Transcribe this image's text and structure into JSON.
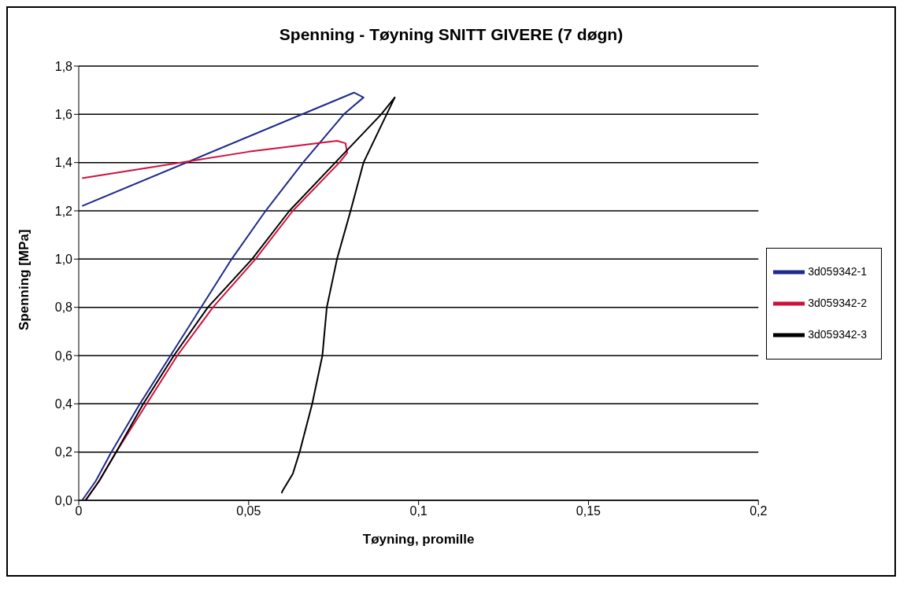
{
  "chart_data": {
    "type": "line",
    "title": "Spenning - Tøyning SNITT GIVERE (7 døgn)",
    "xlabel": "Tøyning, promille",
    "ylabel": "Spenning [MPa]",
    "xlim": [
      0,
      0.2
    ],
    "xticks": [
      0,
      {
        "value": 0.05,
        "label": "0,05"
      },
      {
        "value": 0.1,
        "label": "0,1"
      },
      {
        "value": 0.15,
        "label": "0,15"
      },
      {
        "value": 0.2,
        "label": "0,2"
      }
    ],
    "ylim": [
      0,
      1.8
    ],
    "yticks": [
      {
        "value": 0,
        "label": "0,0"
      },
      {
        "value": 0.2,
        "label": "0,2"
      },
      {
        "value": 0.4,
        "label": "0,4"
      },
      {
        "value": 0.6,
        "label": "0,6"
      },
      {
        "value": 0.8,
        "label": "0,8"
      },
      {
        "value": 1,
        "label": "1,0"
      },
      {
        "value": 1.2,
        "label": "1,2"
      },
      {
        "value": 1.4,
        "label": "1,4"
      },
      {
        "value": 1.6,
        "label": "1,6"
      },
      {
        "value": 1.8,
        "label": "1,8"
      }
    ],
    "grid": "y",
    "legend": "right",
    "marker": "none",
    "line_style": "solid",
    "series": [
      {
        "name": "3d059342-1",
        "color": "#1f2a8a",
        "x": [
          0.001,
          0.005,
          0.0096,
          0.018,
          0.027,
          0.036,
          0.045,
          0.055,
          0.066,
          0.078,
          0.0838,
          0.081,
          0.001
        ],
        "values": [
          0,
          0.08,
          0.2,
          0.4,
          0.6,
          0.8,
          1.0,
          1.2,
          1.4,
          1.6,
          1.67,
          1.69,
          1.22
        ]
      },
      {
        "name": "3d059342-2",
        "color": "#d0103c",
        "x": [
          0.002,
          0.006,
          0.011,
          0.02,
          0.029,
          0.0395,
          0.052,
          0.063,
          0.0767,
          0.079,
          0.0785,
          0.076,
          0.05,
          0.001
        ],
        "values": [
          0,
          0.08,
          0.2,
          0.4,
          0.6,
          0.8,
          1.0,
          1.2,
          1.4,
          1.44,
          1.48,
          1.49,
          1.445,
          1.335
        ]
      },
      {
        "name": "3d059342-3",
        "color": "#000000",
        "x": [
          0.002,
          0.006,
          0.011,
          0.019,
          0.028,
          0.038,
          0.051,
          0.062,
          0.0755,
          0.089,
          0.093,
          0.0906,
          0.0838,
          0.08,
          0.076,
          0.073,
          0.0717,
          0.0687,
          0.065,
          0.063,
          0.06,
          0.0597
        ],
        "values": [
          0,
          0.08,
          0.2,
          0.4,
          0.6,
          0.8,
          1.0,
          1.2,
          1.4,
          1.6,
          1.67,
          1.6,
          1.4,
          1.2,
          1.0,
          0.8,
          0.6,
          0.4,
          0.2,
          0.11,
          0.04,
          0.03
        ]
      }
    ]
  }
}
